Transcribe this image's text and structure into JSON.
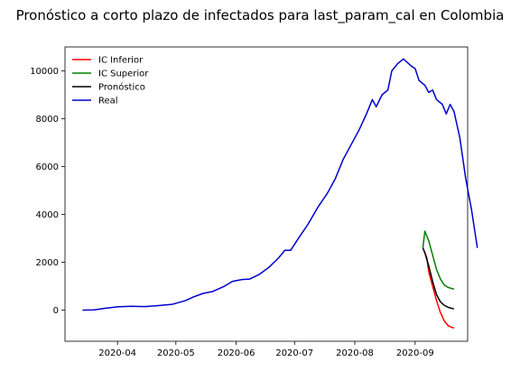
{
  "chart_data": {
    "type": "line",
    "title": "Pronóstico a corto plazo de infectados para last_param_cal en Colombia",
    "xlabel": "",
    "ylabel": "",
    "x_ticks": [
      "2020-04",
      "2020-05",
      "2020-06",
      "2020-07",
      "2020-08",
      "2020-09"
    ],
    "y_ticks": [
      "0",
      "2000",
      "4000",
      "6000",
      "8000",
      "10000"
    ],
    "xlim": [
      "2020-03-05",
      "2020-09-28"
    ],
    "ylim": [
      -1300,
      11000
    ],
    "grid": false,
    "legend_position": "top-left",
    "series": [
      {
        "name": "IC Inferior",
        "color": "#ff0000",
        "points": [
          [
            "2020-09-05",
            2600
          ],
          [
            "2020-09-07",
            2200
          ],
          [
            "2020-09-08",
            1600
          ],
          [
            "2020-09-10",
            1000
          ],
          [
            "2020-09-12",
            400
          ],
          [
            "2020-09-14",
            -100
          ],
          [
            "2020-09-16",
            -450
          ],
          [
            "2020-09-18",
            -650
          ],
          [
            "2020-09-20",
            -720
          ],
          [
            "2020-09-21",
            -750
          ]
        ]
      },
      {
        "name": "IC Superior",
        "color": "#008000",
        "points": [
          [
            "2020-09-05",
            2600
          ],
          [
            "2020-09-06",
            3300
          ],
          [
            "2020-09-08",
            2900
          ],
          [
            "2020-09-10",
            2300
          ],
          [
            "2020-09-12",
            1700
          ],
          [
            "2020-09-14",
            1300
          ],
          [
            "2020-09-16",
            1050
          ],
          [
            "2020-09-18",
            950
          ],
          [
            "2020-09-20",
            900
          ],
          [
            "2020-09-21",
            880
          ]
        ]
      },
      {
        "name": "Pronóstico",
        "color": "#000000",
        "points": [
          [
            "2020-09-05",
            2600
          ],
          [
            "2020-09-06",
            2400
          ],
          [
            "2020-09-08",
            1850
          ],
          [
            "2020-09-10",
            1200
          ],
          [
            "2020-09-12",
            650
          ],
          [
            "2020-09-14",
            350
          ],
          [
            "2020-09-16",
            200
          ],
          [
            "2020-09-18",
            120
          ],
          [
            "2020-09-20",
            70
          ],
          [
            "2020-09-21",
            60
          ]
        ]
      },
      {
        "name": "Real",
        "color": "#0000cc",
        "points": [
          [
            "2020-03-14",
            0
          ],
          [
            "2020-03-20",
            10
          ],
          [
            "2020-03-26",
            80
          ],
          [
            "2020-04-01",
            140
          ],
          [
            "2020-04-08",
            160
          ],
          [
            "2020-04-15",
            150
          ],
          [
            "2020-04-22",
            190
          ],
          [
            "2020-04-29",
            240
          ],
          [
            "2020-05-06",
            400
          ],
          [
            "2020-05-10",
            550
          ],
          [
            "2020-05-15",
            700
          ],
          [
            "2020-05-20",
            780
          ],
          [
            "2020-05-26",
            1000
          ],
          [
            "2020-05-30",
            1200
          ],
          [
            "2020-06-04",
            1280
          ],
          [
            "2020-06-08",
            1300
          ],
          [
            "2020-06-13",
            1500
          ],
          [
            "2020-06-18",
            1800
          ],
          [
            "2020-06-23",
            2200
          ],
          [
            "2020-06-26",
            2500
          ],
          [
            "2020-06-29",
            2500
          ],
          [
            "2020-07-03",
            3000
          ],
          [
            "2020-07-08",
            3600
          ],
          [
            "2020-07-13",
            4300
          ],
          [
            "2020-07-18",
            4900
          ],
          [
            "2020-07-22",
            5500
          ],
          [
            "2020-07-26",
            6300
          ],
          [
            "2020-07-30",
            6900
          ],
          [
            "2020-08-03",
            7500
          ],
          [
            "2020-08-07",
            8200
          ],
          [
            "2020-08-10",
            8800
          ],
          [
            "2020-08-12",
            8500
          ],
          [
            "2020-08-15",
            9000
          ],
          [
            "2020-08-18",
            9200
          ],
          [
            "2020-08-20",
            10000
          ],
          [
            "2020-08-23",
            10300
          ],
          [
            "2020-08-26",
            10500
          ],
          [
            "2020-08-30",
            10200
          ],
          [
            "2020-09-01",
            10100
          ],
          [
            "2020-09-03",
            9600
          ],
          [
            "2020-09-06",
            9400
          ],
          [
            "2020-09-08",
            9100
          ],
          [
            "2020-09-10",
            9200
          ],
          [
            "2020-09-12",
            8800
          ],
          [
            "2020-09-15",
            8600
          ],
          [
            "2020-09-17",
            8200
          ],
          [
            "2020-09-19",
            8600
          ],
          [
            "2020-09-21",
            8300
          ],
          [
            "2020-09-24",
            7200
          ],
          [
            "2020-09-27",
            5500
          ],
          [
            "2020-09-30",
            4200
          ],
          [
            "2020-10-03",
            2600
          ]
        ]
      }
    ]
  }
}
